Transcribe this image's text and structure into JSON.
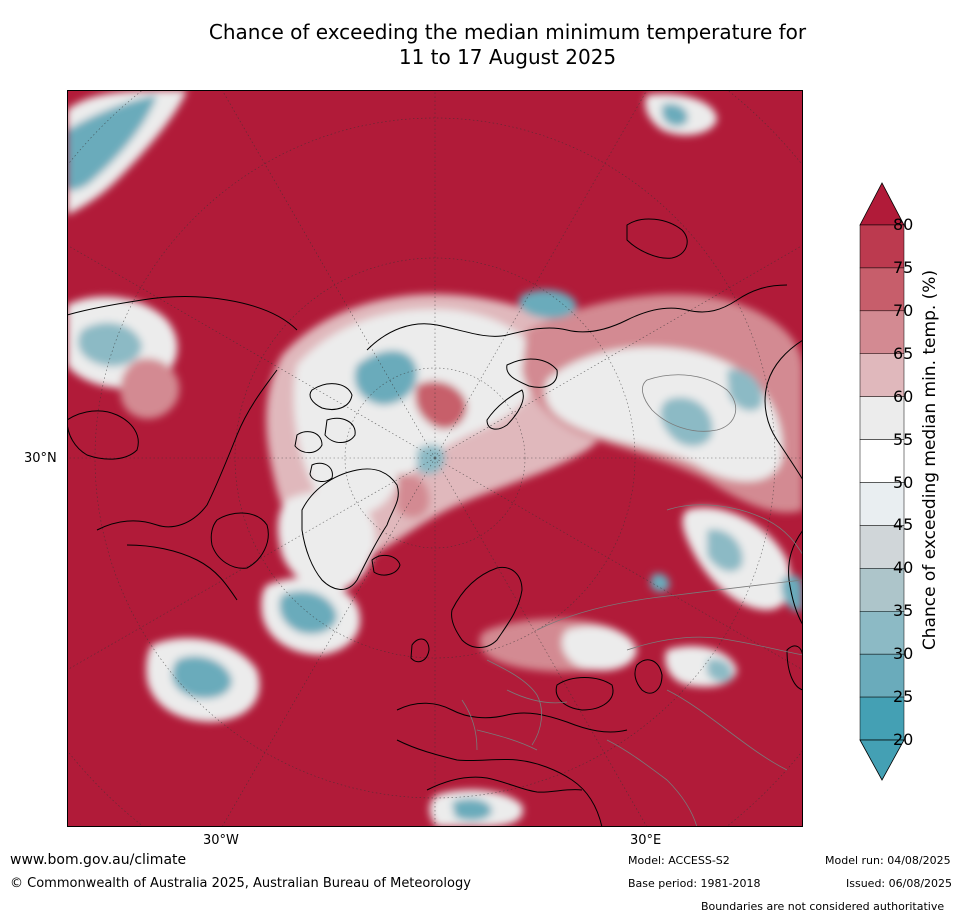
{
  "title": {
    "line1": "Chance of exceeding the median minimum temperature for",
    "line2": "11 to 17 August 2025"
  },
  "map": {
    "region": "Northern Hemisphere high latitudes (polar projection)",
    "lat_label": "30°N",
    "lon_labels": [
      "30°W",
      "30°E"
    ],
    "colors": {
      "ocean_high": "#b11b39",
      "land_high": "#b11b39",
      "coastline": "#000000",
      "borders": "#7a7a7a",
      "graticule": "#333333"
    },
    "regions": [
      {
        "name": "arctic-ocean-center",
        "category": "20-80 mixed"
      },
      {
        "name": "greenland-east-coast",
        "category": "30-50"
      },
      {
        "name": "north-atlantic-south-of-greenland",
        "category": "20-35"
      },
      {
        "name": "western-siberia",
        "category": "40-65"
      },
      {
        "name": "europe",
        "category": "80+"
      }
    ]
  },
  "colorbar": {
    "title": "Chance of exceeding median min. temp. (%)",
    "ticks": [
      "80",
      "75",
      "70",
      "65",
      "60",
      "55",
      "50",
      "45",
      "40",
      "35",
      "30",
      "25",
      "20"
    ],
    "colors": [
      "#b11b39",
      "#bc3a4f",
      "#c75e6b",
      "#d38a92",
      "#e0b8bc",
      "#ececec",
      "#ffffff",
      "#e9eef1",
      "#d0d6d9",
      "#adc5ca",
      "#8cbac5",
      "#6aabbb",
      "#44a0b4"
    ],
    "low_arrow_color": "#44a0b4",
    "high_arrow_color": "#b11b39"
  },
  "footer": {
    "url": "www.bom.gov.au/climate",
    "copyright": "© Commonwealth of Australia 2025, Australian Bureau of Meteorology",
    "model": "Model: ACCESS-S2",
    "base_period": "Base period: 1981-2018",
    "model_run": "Model run: 04/08/2025",
    "issued": "Issued: 06/08/2025",
    "disclaimer": "Boundaries are not considered authoritative"
  }
}
